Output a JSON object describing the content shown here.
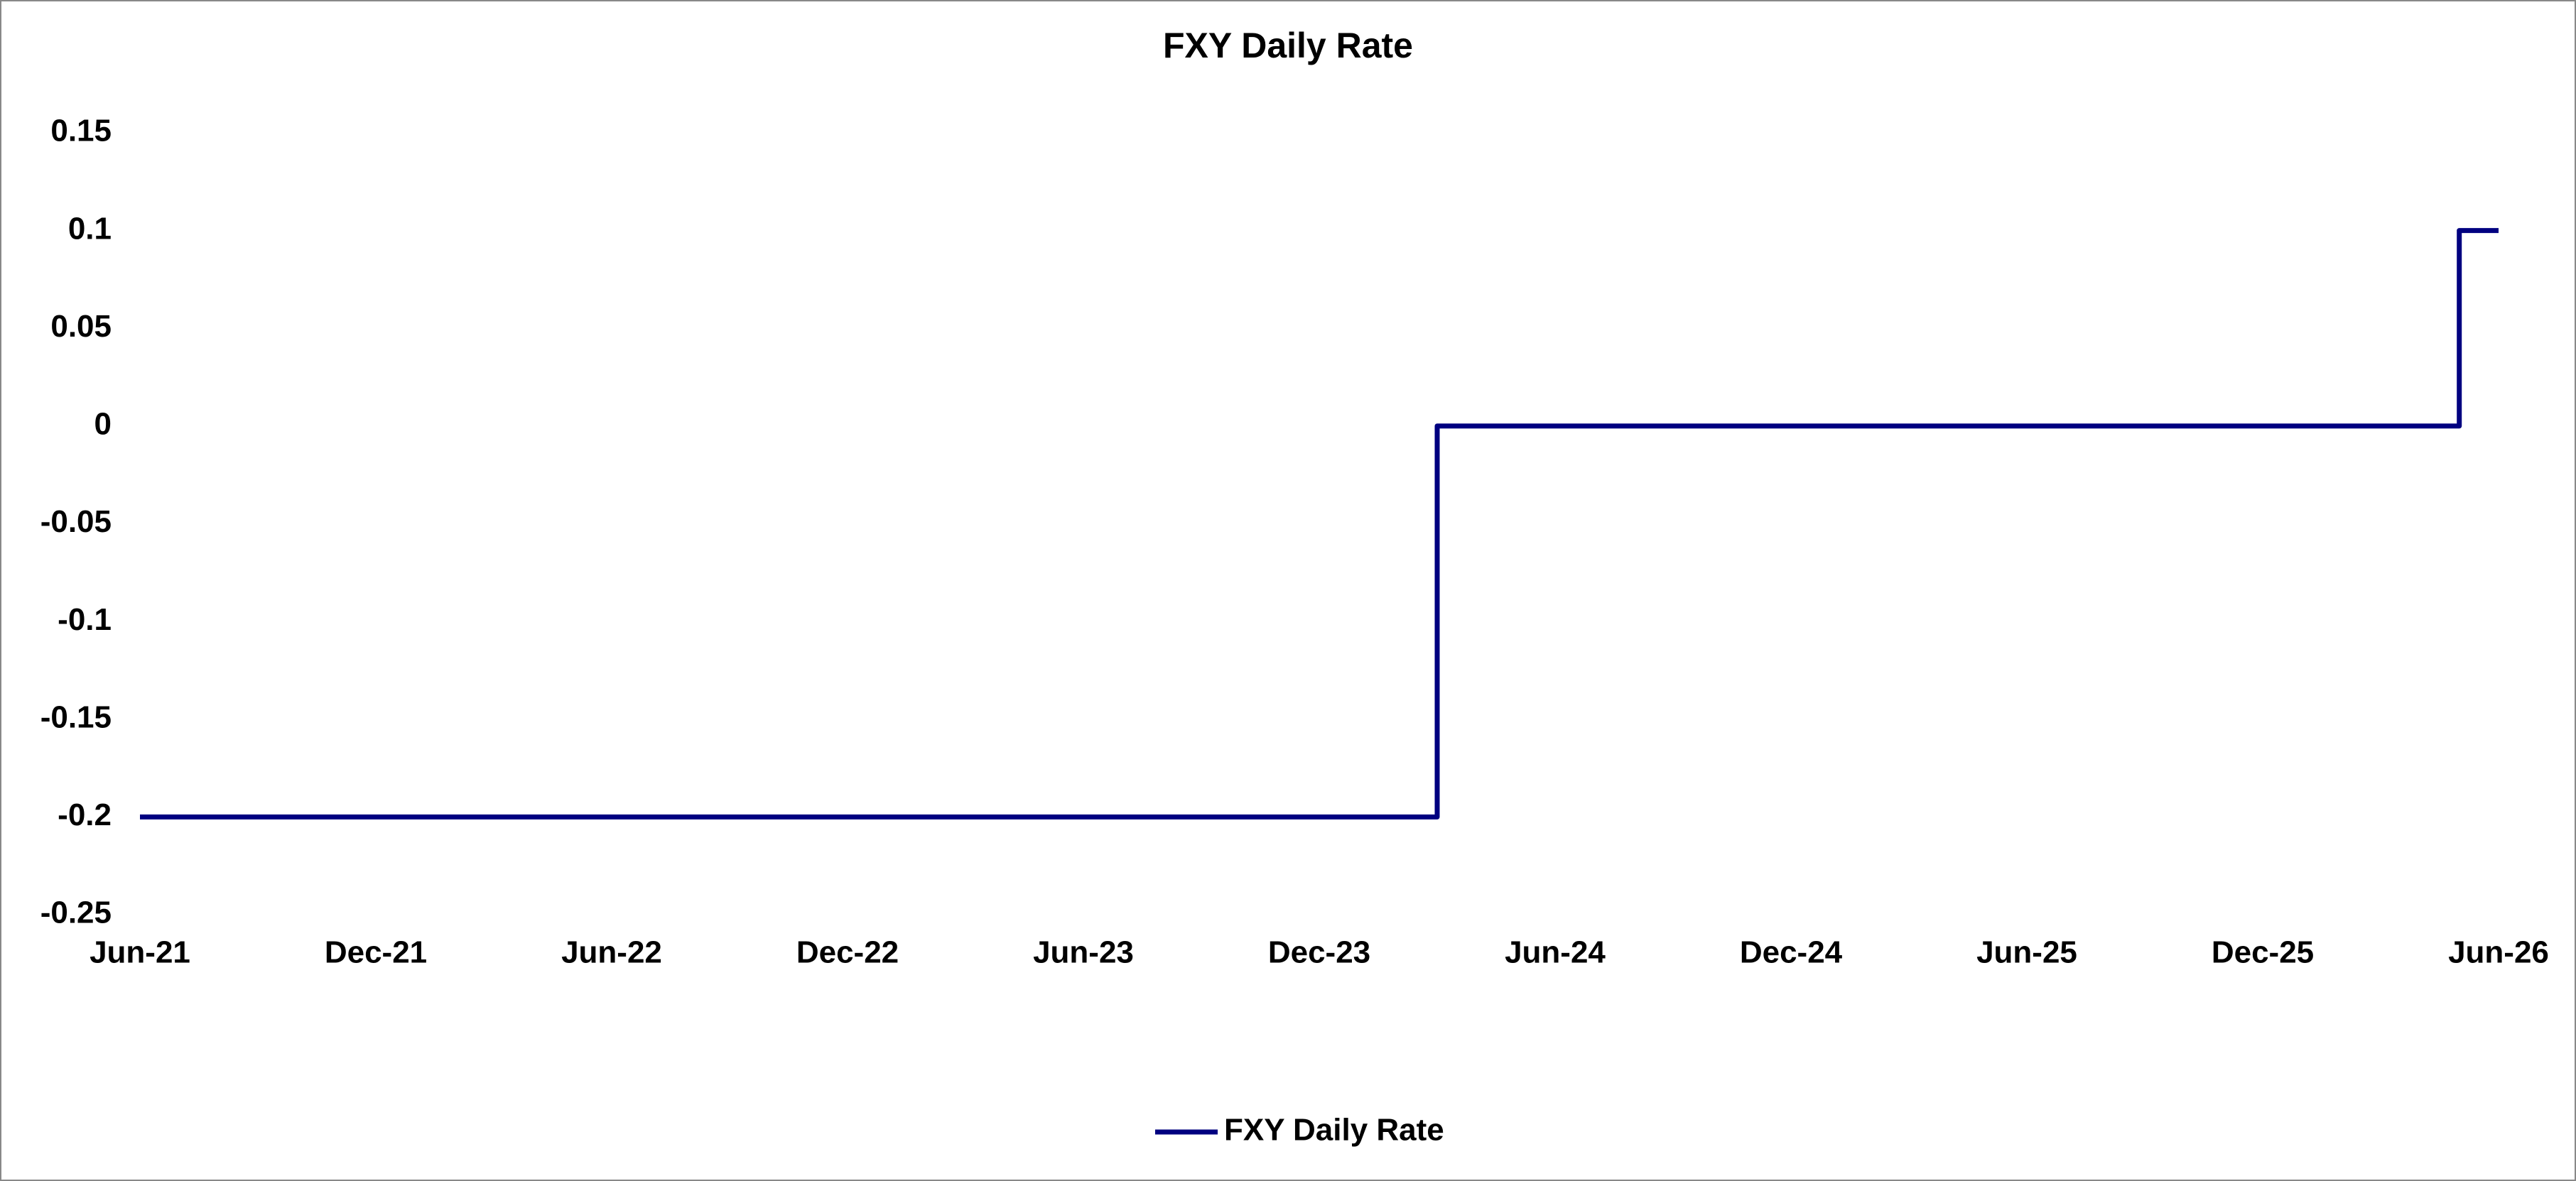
{
  "chart_data": {
    "type": "line",
    "title": "FXY Daily Rate",
    "x": [
      "2021-06",
      "2024-03",
      "2024-03",
      "2026-05",
      "2026-05",
      "2026-06"
    ],
    "series": [
      {
        "name": "FXY Daily Rate",
        "color": "#000080",
        "values": [
          -0.2,
          -0.2,
          0,
          0,
          0.1,
          0.1
        ]
      }
    ],
    "xlim": [
      "2021-06",
      "2026-06"
    ],
    "xticks": [
      {
        "value": "2021-06",
        "label": "Jun-21"
      },
      {
        "value": "2021-12",
        "label": "Dec-21"
      },
      {
        "value": "2022-06",
        "label": "Jun-22"
      },
      {
        "value": "2022-12",
        "label": "Dec-22"
      },
      {
        "value": "2023-06",
        "label": "Jun-23"
      },
      {
        "value": "2023-12",
        "label": "Dec-23"
      },
      {
        "value": "2024-06",
        "label": "Jun-24"
      },
      {
        "value": "2024-12",
        "label": "Dec-24"
      },
      {
        "value": "2025-06",
        "label": "Jun-25"
      },
      {
        "value": "2025-12",
        "label": "Dec-25"
      },
      {
        "value": "2026-06",
        "label": "Jun-26"
      }
    ],
    "ylim": [
      -0.25,
      0.15
    ],
    "yticks": [
      -0.25,
      -0.2,
      -0.15,
      -0.1,
      -0.05,
      0,
      0.05,
      0.1,
      0.15
    ],
    "grid": false,
    "legend": "bottom"
  }
}
